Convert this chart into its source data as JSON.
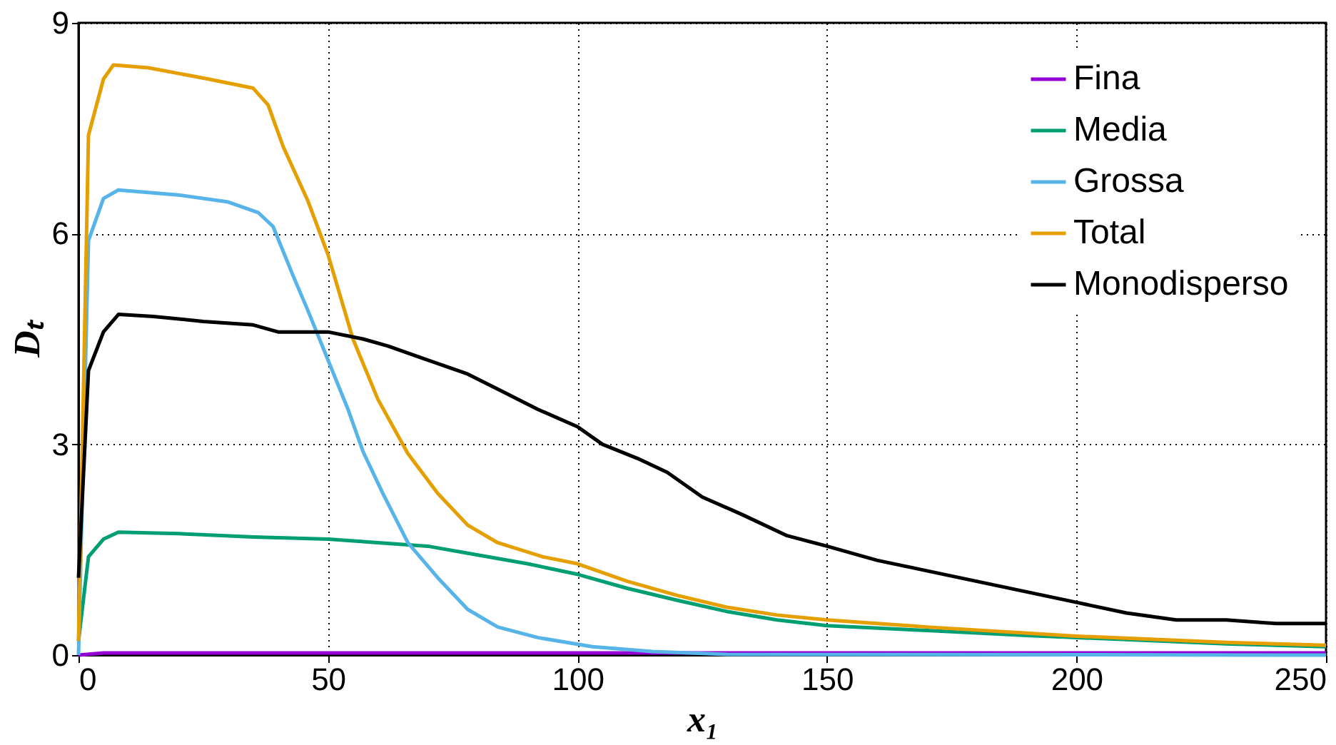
{
  "chart_data": {
    "type": "line",
    "xlabel": "x₁",
    "ylabel": "Dₜ",
    "xlim": [
      0,
      250
    ],
    "xticks": [
      0,
      50,
      100,
      150,
      200,
      250
    ],
    "ylim": [
      0,
      9
    ],
    "yticks": [
      0,
      3,
      6,
      9
    ],
    "grid": true,
    "legend": "top right",
    "line_style": "solid",
    "marker": "none",
    "series": [
      {
        "name": "Fina",
        "color": "#9400d3",
        "x": [
          0,
          5,
          50,
          100,
          150,
          200,
          250
        ],
        "values": [
          0,
          0.03,
          0.03,
          0.03,
          0.03,
          0.03,
          0.03
        ]
      },
      {
        "name": "Media",
        "color": "#009e73",
        "x": [
          0,
          2,
          5,
          8,
          20,
          35,
          50,
          60,
          70,
          78,
          90,
          100,
          110,
          120,
          130,
          140,
          150,
          170,
          190,
          210,
          230,
          250
        ],
        "values": [
          0.2,
          1.4,
          1.65,
          1.75,
          1.73,
          1.68,
          1.65,
          1.6,
          1.55,
          1.45,
          1.3,
          1.15,
          0.95,
          0.78,
          0.62,
          0.5,
          0.42,
          0.35,
          0.28,
          0.22,
          0.16,
          0.12
        ]
      },
      {
        "name": "Grossa",
        "color": "#56b4e9",
        "x": [
          0,
          2,
          5,
          8,
          20,
          30,
          36,
          39,
          43,
          46,
          50,
          54,
          57,
          61,
          66,
          72,
          78,
          84,
          92,
          103,
          115,
          130,
          250
        ],
        "values": [
          0,
          5.9,
          6.5,
          6.62,
          6.55,
          6.45,
          6.3,
          6.1,
          5.4,
          4.9,
          4.2,
          3.5,
          2.9,
          2.3,
          1.6,
          1.1,
          0.65,
          0.4,
          0.25,
          0.12,
          0.05,
          0.01,
          0
        ]
      },
      {
        "name": "Total",
        "color": "#e69f00",
        "x": [
          0,
          2,
          5,
          7,
          14,
          26,
          35,
          38,
          41,
          46,
          50,
          55,
          60,
          66,
          72,
          78,
          84,
          93,
          100,
          110,
          120,
          130,
          140,
          150,
          170,
          200,
          230,
          250
        ],
        "values": [
          0.2,
          7.4,
          8.2,
          8.4,
          8.36,
          8.2,
          8.07,
          7.83,
          7.24,
          6.46,
          5.7,
          4.5,
          3.64,
          2.87,
          2.3,
          1.85,
          1.6,
          1.4,
          1.3,
          1.05,
          0.85,
          0.68,
          0.57,
          0.5,
          0.4,
          0.27,
          0.18,
          0.14
        ]
      },
      {
        "name": "Monodisperso",
        "color": "#000000",
        "x": [
          0,
          2,
          5,
          8,
          15,
          25,
          35,
          40,
          50,
          57,
          62,
          70,
          78,
          85,
          92,
          100,
          105,
          112,
          118,
          125,
          133,
          142,
          150,
          160,
          170,
          180,
          190,
          200,
          210,
          220,
          230,
          240,
          250
        ],
        "values": [
          1.1,
          4.05,
          4.6,
          4.85,
          4.82,
          4.75,
          4.7,
          4.6,
          4.6,
          4.5,
          4.4,
          4.2,
          4.0,
          3.75,
          3.5,
          3.25,
          3.0,
          2.8,
          2.6,
          2.25,
          2.0,
          1.7,
          1.55,
          1.35,
          1.2,
          1.05,
          0.9,
          0.75,
          0.6,
          0.5,
          0.5,
          0.45,
          0.45
        ]
      }
    ]
  }
}
